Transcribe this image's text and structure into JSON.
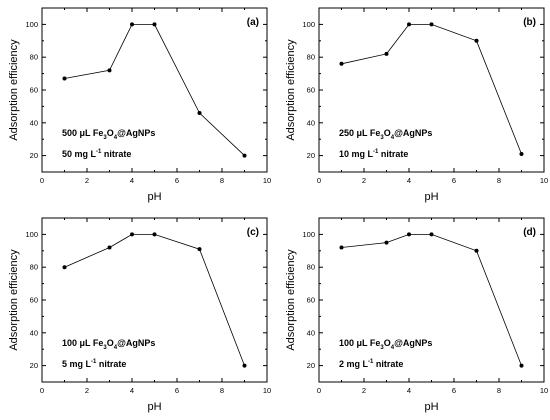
{
  "chart_data": [
    {
      "type": "line",
      "panel_label": "(a)",
      "x": [
        1,
        3,
        4,
        5,
        7,
        9
      ],
      "values": [
        67,
        72,
        100,
        100,
        46,
        20
      ],
      "xlabel": "pH",
      "ylabel": "Adsorption efficiency",
      "xlim": [
        0,
        10
      ],
      "ylim": [
        10,
        110
      ],
      "xticks": [
        "0",
        "2",
        "4",
        "6",
        "8",
        "10"
      ],
      "yticks": [
        "20",
        "40",
        "60",
        "80",
        "100"
      ],
      "annotation": {
        "line1": {
          "pre": "500 μL Fe",
          "sub1": "3",
          "mid": "O",
          "sub2": "4",
          "post": "@AgNPs"
        },
        "line2": {
          "pre": "50 mg L",
          "sup": "-1",
          "post": " nitrate"
        }
      }
    },
    {
      "type": "line",
      "panel_label": "(b)",
      "x": [
        1,
        3,
        4,
        5,
        7,
        9
      ],
      "values": [
        76,
        82,
        100,
        100,
        90,
        21
      ],
      "xlabel": "pH",
      "ylabel": "Adsorption efficiency",
      "xlim": [
        0,
        10
      ],
      "ylim": [
        10,
        110
      ],
      "xticks": [
        "0",
        "2",
        "4",
        "6",
        "8",
        "10"
      ],
      "yticks": [
        "20",
        "40",
        "60",
        "80",
        "100"
      ],
      "annotation": {
        "line1": {
          "pre": "250 μL Fe",
          "sub1": "3",
          "mid": "O",
          "sub2": "4",
          "post": "@AgNPs"
        },
        "line2": {
          "pre": "10 mg L",
          "sup": "-1",
          "post": " nitrate"
        }
      }
    },
    {
      "type": "line",
      "panel_label": "(c)",
      "x": [
        1,
        3,
        4,
        5,
        7,
        9
      ],
      "values": [
        80,
        92,
        100,
        100,
        91,
        20
      ],
      "xlabel": "pH",
      "ylabel": "Adsorption efficiency",
      "xlim": [
        0,
        10
      ],
      "ylim": [
        10,
        110
      ],
      "xticks": [
        "0",
        "2",
        "4",
        "6",
        "8",
        "10"
      ],
      "yticks": [
        "20",
        "40",
        "60",
        "80",
        "100"
      ],
      "annotation": {
        "line1": {
          "pre": "100 μL Fe",
          "sub1": "3",
          "mid": "O",
          "sub2": "4",
          "post": "@AgNPs"
        },
        "line2": {
          "pre": "5 mg L",
          "sup": "-1",
          "post": " nitrate"
        }
      }
    },
    {
      "type": "line",
      "panel_label": "(d)",
      "x": [
        1,
        3,
        4,
        5,
        7,
        9
      ],
      "values": [
        92,
        95,
        100,
        100,
        90,
        20
      ],
      "xlabel": "pH",
      "ylabel": "Adsorption efficiency",
      "xlim": [
        0,
        10
      ],
      "ylim": [
        10,
        110
      ],
      "xticks": [
        "0",
        "2",
        "4",
        "6",
        "8",
        "10"
      ],
      "yticks": [
        "20",
        "40",
        "60",
        "80",
        "100"
      ],
      "annotation": {
        "line1": {
          "pre": "100 μL Fe",
          "sub1": "3",
          "mid": "O",
          "sub2": "4",
          "post": "@AgNPs"
        },
        "line2": {
          "pre": "2 mg L",
          "sup": "-1",
          "post": " nitrate"
        }
      }
    }
  ]
}
